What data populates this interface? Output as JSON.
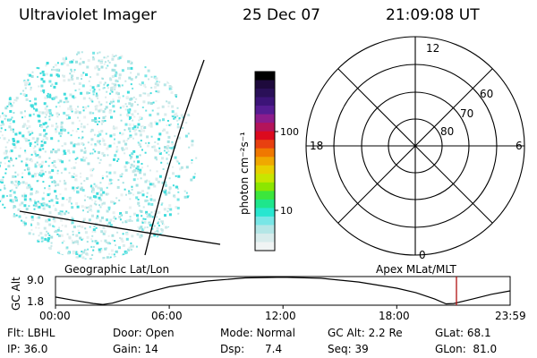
{
  "header": {
    "instrument": "Ultraviolet Imager",
    "date": "25 Dec 07",
    "time": "21:09:08 UT"
  },
  "colorbar": {
    "label": "photon cm⁻²s⁻¹",
    "ticks": [
      "100",
      "10"
    ],
    "colors": [
      "#000000",
      "#1e0a3c",
      "#2a1058",
      "#3c1478",
      "#561c92",
      "#8c1c8c",
      "#b4145a",
      "#dc0a1e",
      "#e84010",
      "#f07800",
      "#f0a800",
      "#e8d000",
      "#c8e600",
      "#8ce600",
      "#3ce63c",
      "#1ee68c",
      "#28e6d0",
      "#78e6e6",
      "#b4e6e6",
      "#d8ecec",
      "#f0f4f4"
    ]
  },
  "polar_grid": {
    "mlt_labels": [
      "12",
      "6",
      "0",
      "18"
    ],
    "lat_labels": [
      "60",
      "70",
      "80"
    ]
  },
  "timeline": {
    "left_label": "Geographic Lat/Lon",
    "right_label": "Apex MLat/MLT",
    "y_axis_label": "GC Alt",
    "y_ticks": [
      "9.0",
      "1.8"
    ],
    "x_ticks": [
      "00:00",
      "06:00",
      "12:00",
      "18:00",
      "23:59"
    ]
  },
  "info": {
    "flt": "Flt: LBHL",
    "door": "Door: Open",
    "mode": "Mode: Normal",
    "gc_alt": "GC Alt: 2.2 Re",
    "glat": "GLat:  68.1",
    "ip": "IP: 36.0",
    "gain": "Gain: 14",
    "dsp": "Dsp:      7.4",
    "seq": "Seq: 39",
    "glon": "GLon:  81.0"
  },
  "chart_data": {
    "type": "line",
    "title": "",
    "xlabel": "",
    "ylabel": "GC Alt",
    "x": [
      0,
      1,
      2,
      2.5,
      3,
      4,
      5,
      6,
      8,
      10,
      12,
      14,
      16,
      18,
      19,
      20,
      20.6,
      21,
      22,
      23,
      23.98
    ],
    "values": [
      3.2,
      2.2,
      1.3,
      1.0,
      1.4,
      3.0,
      4.8,
      6.2,
      7.9,
      8.8,
      9.0,
      8.7,
      7.6,
      5.8,
      4.5,
      2.6,
      1.2,
      1.3,
      2.6,
      4.0,
      5.0
    ],
    "xlim": [
      0,
      23.98
    ],
    "ylim": [
      0.8,
      9.2
    ],
    "current_time": 21.15,
    "current_time_color": "#b01010"
  }
}
